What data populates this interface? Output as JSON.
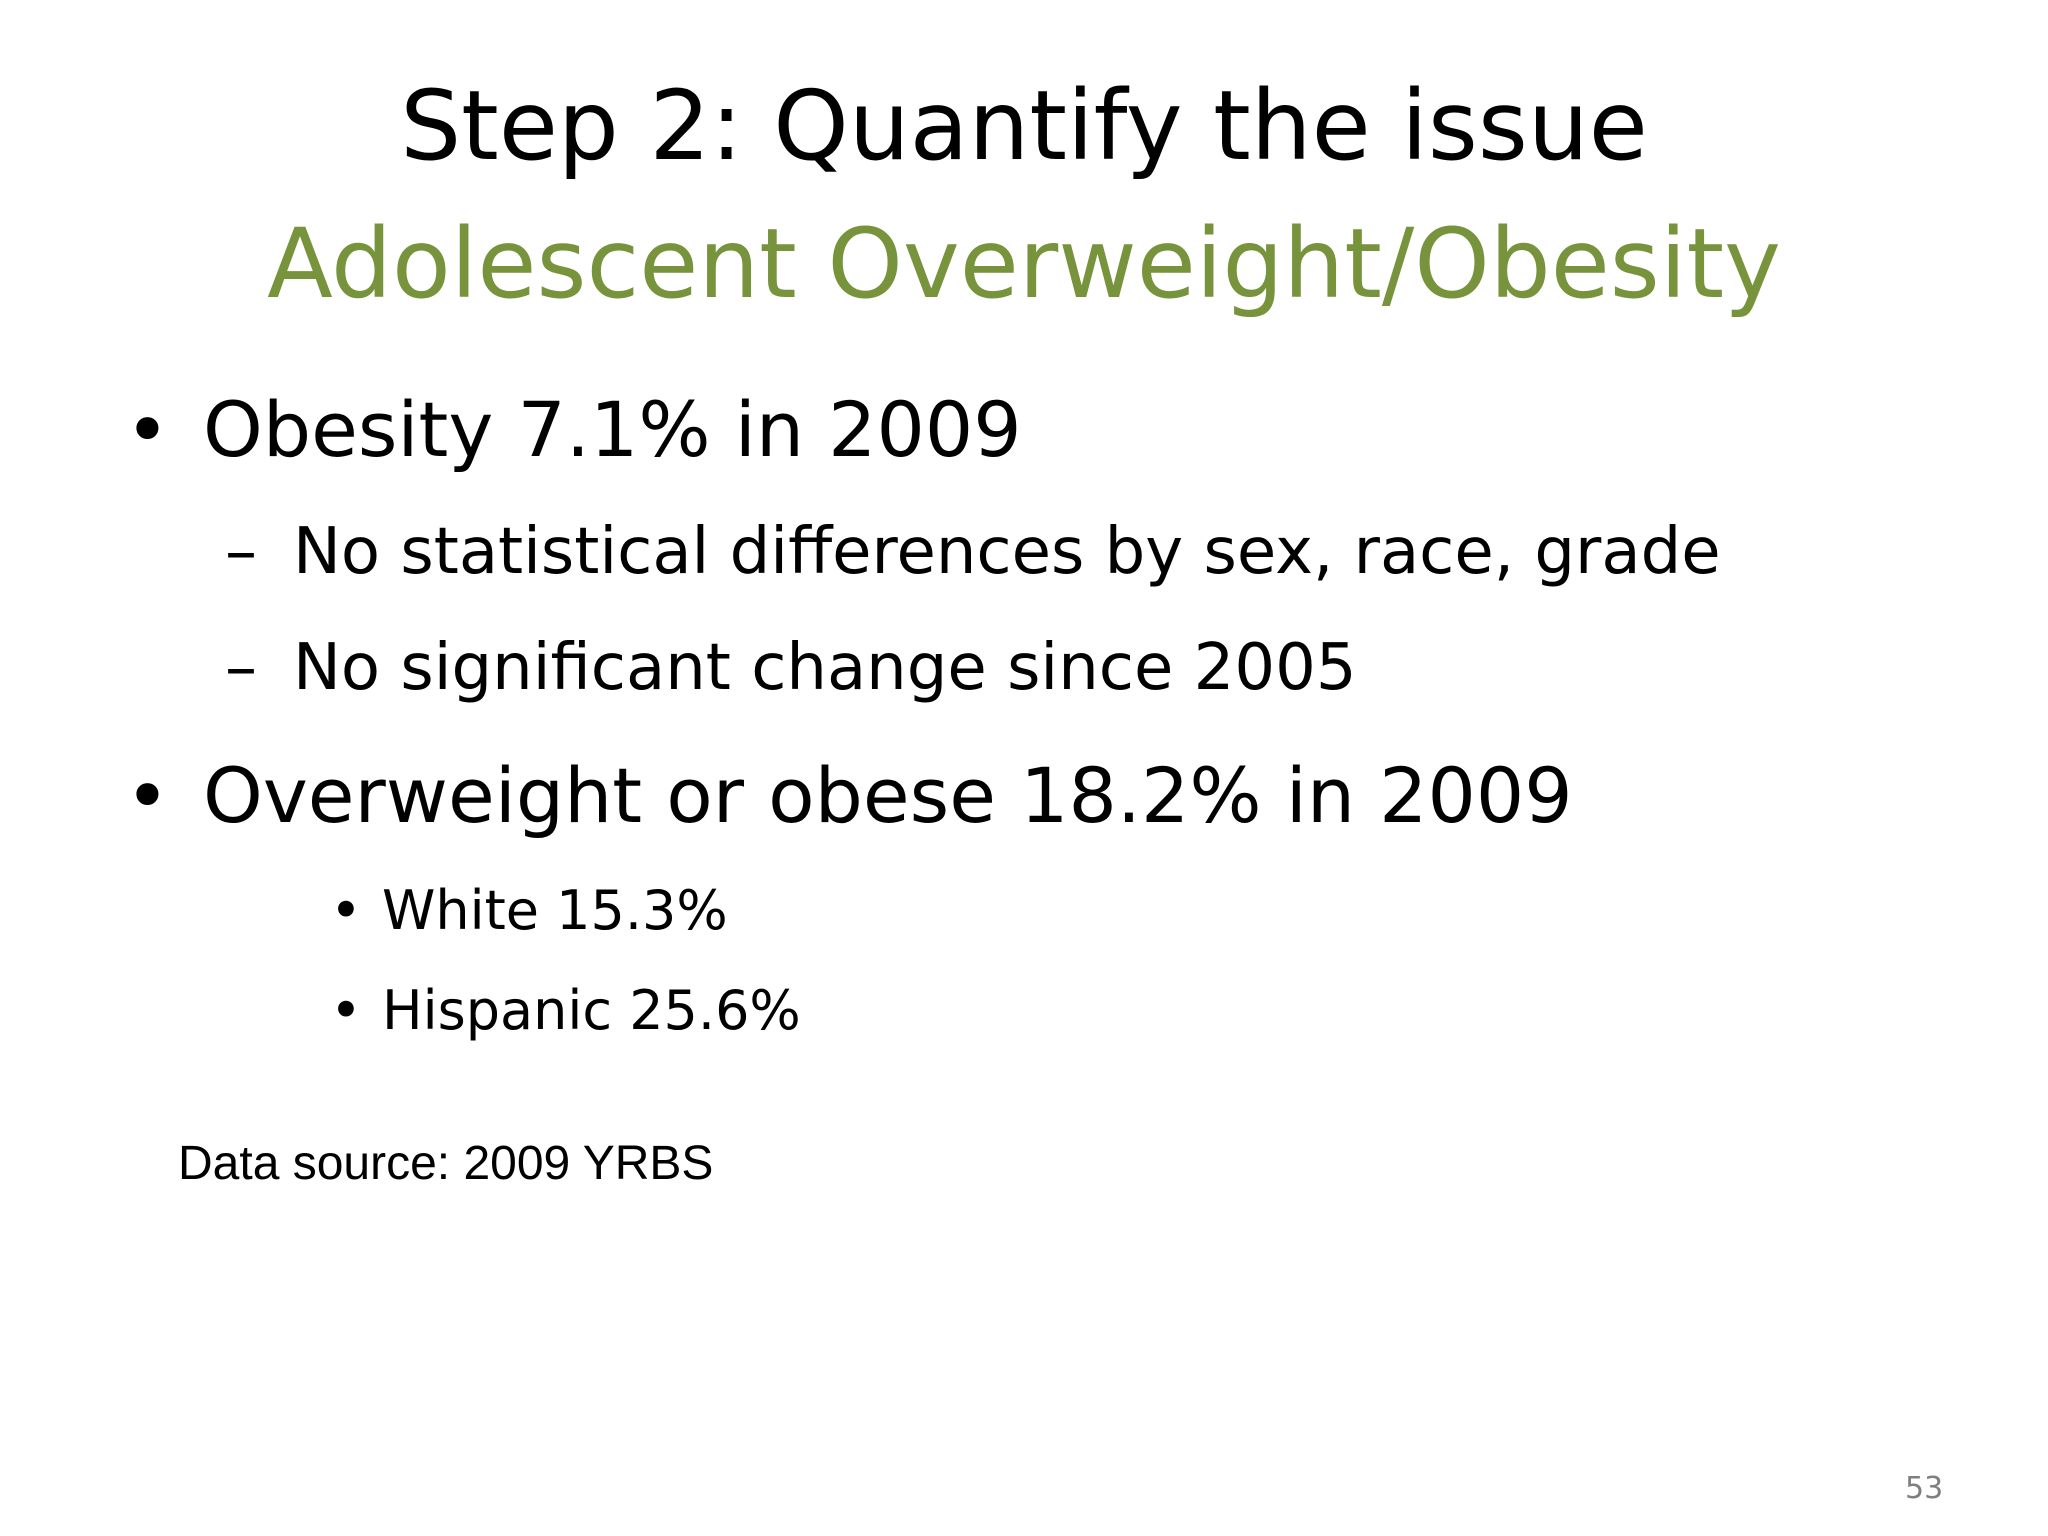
{
  "slide": {
    "title": "Step 2: Quantify the issue",
    "subtitle": "Adolescent Overweight/Obesity",
    "subtitle_color": "#77933c",
    "bullets": [
      {
        "marker": "•",
        "text": "Obesity 7.1% in 2009",
        "subitems": [
          {
            "marker": "–",
            "text": "No statistical differences by sex, race, grade"
          },
          {
            "marker": "–",
            "text": "No significant change since 2005"
          }
        ]
      },
      {
        "marker": "•",
        "text": "Overweight or obese 18.2% in 2009",
        "subitems": [
          {
            "marker": "•",
            "text": "White 15.3%"
          },
          {
            "marker": "•",
            "text": "Hispanic 25.6%"
          }
        ]
      }
    ],
    "source_note": "Data source: 2009 YRBS",
    "page_number": "53"
  }
}
